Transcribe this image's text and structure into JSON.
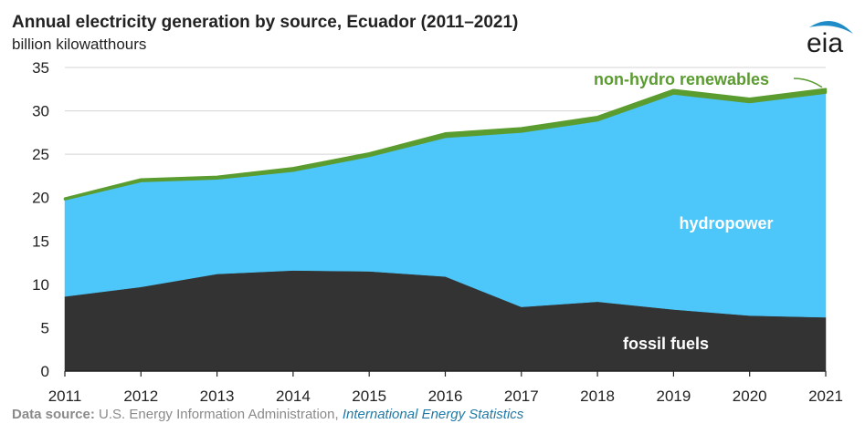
{
  "chart_data": {
    "type": "area",
    "stacked": true,
    "title": "Annual electricity generation by source, Ecuador (2011–2021)",
    "subtitle": "billion kilowatthours",
    "x": [
      2011,
      2012,
      2013,
      2014,
      2015,
      2016,
      2017,
      2018,
      2019,
      2020,
      2021
    ],
    "ylim": [
      0,
      35
    ],
    "yticks": [
      0,
      5,
      10,
      15,
      20,
      25,
      30,
      35
    ],
    "grid": true,
    "series": [
      {
        "name": "fossil fuels",
        "color": "#333333",
        "values": [
          8.6,
          9.7,
          11.2,
          11.6,
          11.5,
          10.9,
          7.4,
          8.0,
          7.1,
          6.4,
          6.2
        ]
      },
      {
        "name": "hydropower",
        "color": "#4dc6f9",
        "values": [
          11.2,
          12.2,
          11.0,
          11.5,
          13.3,
          16.1,
          20.2,
          20.9,
          24.9,
          24.6,
          25.9
        ]
      },
      {
        "name": "non-hydro renewables",
        "color": "#5a9c2f",
        "values": [
          0.1,
          0.2,
          0.2,
          0.3,
          0.3,
          0.4,
          0.4,
          0.4,
          0.4,
          0.4,
          0.4
        ]
      }
    ]
  },
  "source": {
    "label": "Data source:",
    "text": " U.S. Energy Information Administration,",
    "link": " International Energy Statistics"
  },
  "logo": {
    "text": "eia"
  },
  "colors": {
    "grid": "#d4d4d4",
    "axis": "#222222",
    "hydro_label": "#ffffff",
    "fossil_label": "#ffffff",
    "renewables_label": "#5a9c2f"
  }
}
